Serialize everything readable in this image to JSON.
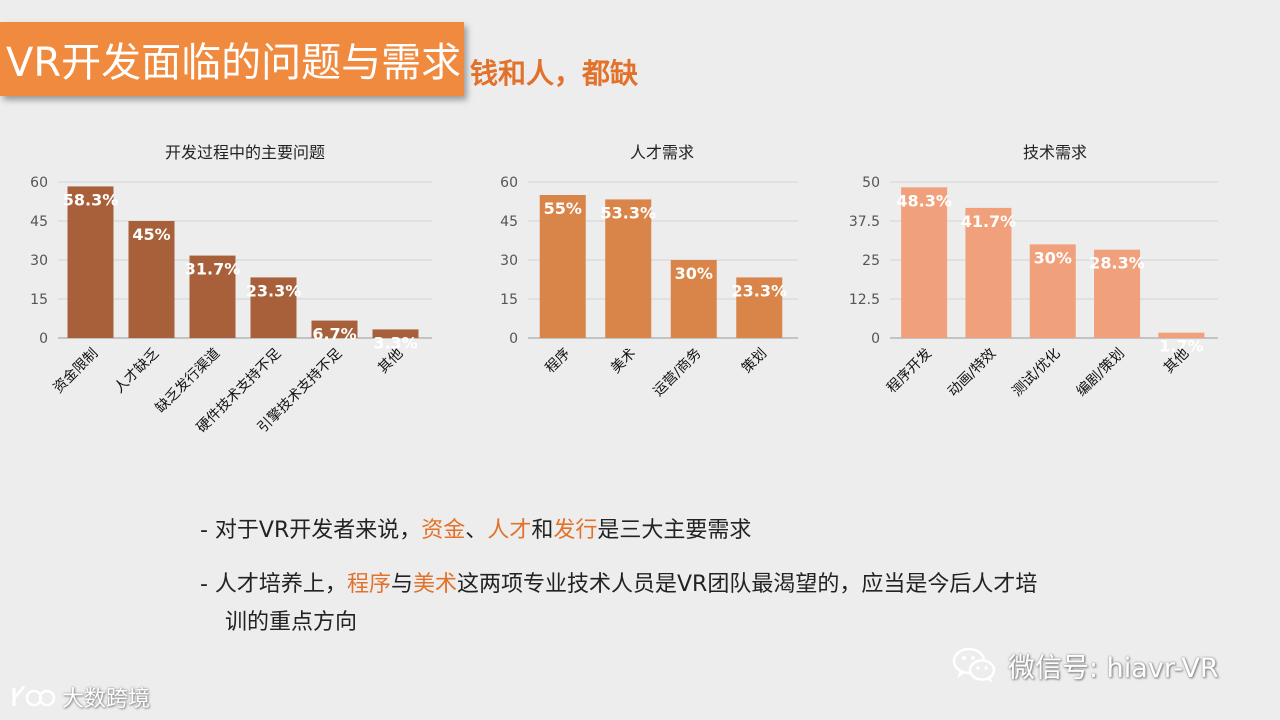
{
  "header": {
    "title": "VR开发面临的问题与需求",
    "subtitle": "钱和人，都缺"
  },
  "chart_data": [
    {
      "type": "bar",
      "title": "开发过程中的主要问题",
      "categories": [
        "资金限制",
        "人才缺乏",
        "缺乏发行渠道",
        "硬件技术支持不足",
        "引擎技术支持不足",
        "其他"
      ],
      "values": [
        58.3,
        45,
        31.7,
        23.3,
        6.7,
        3.3
      ],
      "data_labels": [
        "58.3%",
        "45%",
        "31.7%",
        "23.3%",
        "6.7%",
        "3.3%"
      ],
      "y_ticks": [
        "0",
        "15",
        "30",
        "45",
        "60"
      ],
      "ylim": [
        0,
        60
      ],
      "grid": true,
      "color": "#a8603a"
    },
    {
      "type": "bar",
      "title": "人才需求",
      "categories": [
        "程序",
        "美术",
        "运营/商务",
        "策划"
      ],
      "values": [
        55,
        53.3,
        30,
        23.3
      ],
      "data_labels": [
        "55%",
        "53.3%",
        "30%",
        "23.3%"
      ],
      "y_ticks": [
        "0",
        "15",
        "30",
        "45",
        "60"
      ],
      "ylim": [
        0,
        60
      ],
      "grid": true,
      "color": "#d98449"
    },
    {
      "type": "bar",
      "title": "技术需求",
      "categories": [
        "程序开发",
        "动画/特效",
        "测试/优化",
        "编剧/策划",
        "其他"
      ],
      "values": [
        48.3,
        41.7,
        30,
        28.3,
        1.7
      ],
      "data_labels": [
        "48.3%",
        "41.7%",
        "30%",
        "28.3%",
        "1.7%"
      ],
      "y_ticks": [
        "0",
        "12.5",
        "25",
        "37.5",
        "50"
      ],
      "ylim": [
        0,
        50
      ],
      "grid": true,
      "color": "#f0a07a"
    }
  ],
  "notes": {
    "line1": {
      "prefix": "- 对于VR开发者来说，",
      "hl1": "资金",
      "sep1": "、",
      "hl2": "人才",
      "mid": "和",
      "hl3": "发行",
      "suffix": "是三大主要需求"
    },
    "line2": {
      "prefix": "- 人才培养上，",
      "hl1": "程序",
      "mid": "与",
      "hl2": "美术",
      "suffix": "这两项专业技术人员是VR团队最渴望的，应当是今后人才培",
      "cont": "训的重点方向"
    }
  },
  "watermarks": {
    "wechat": "微信号: hiavr-VR",
    "logo": "大数跨境"
  },
  "colors": {
    "accent": "#f08a3e",
    "highlight": "#e2712a"
  }
}
